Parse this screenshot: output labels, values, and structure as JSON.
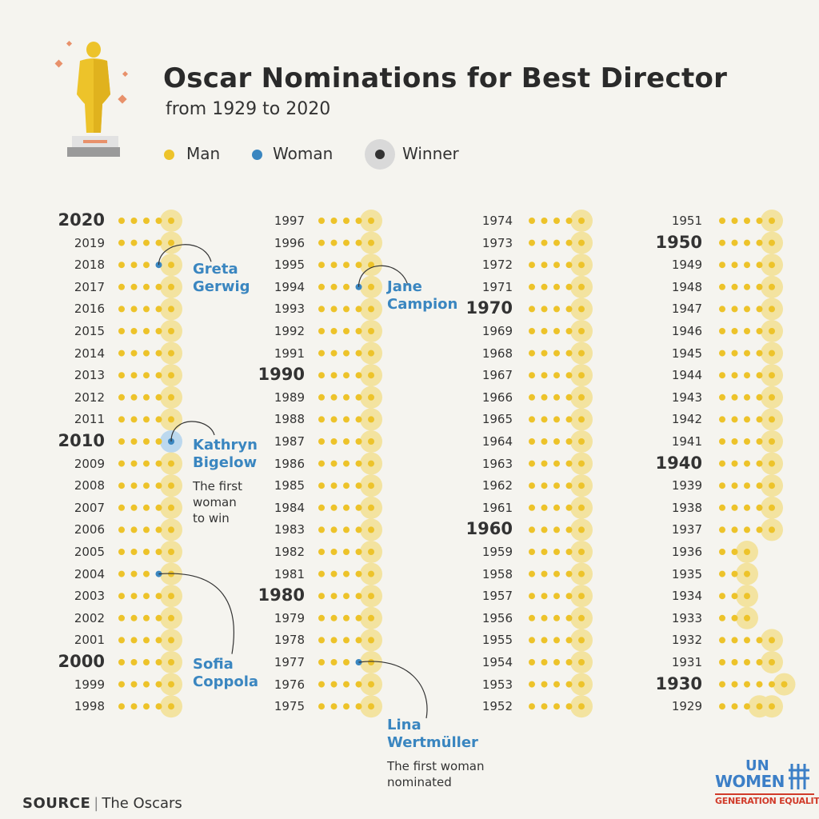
{
  "header": {
    "title": "Oscar Nominations for Best Director",
    "subtitle": "from 1929 to 2020"
  },
  "legend": [
    {
      "label": "Man",
      "color": "#edc32a"
    },
    {
      "label": "Woman",
      "color": "#3a86c0"
    },
    {
      "label": "Winner",
      "color": "#333333"
    }
  ],
  "source": {
    "label": "SOURCE",
    "text": "The Oscars"
  },
  "logo": {
    "line1": "UN",
    "line2": "WOMEN",
    "line3": "GENERATION EQUALITY"
  },
  "colors": {
    "man": "#edc32a",
    "woman": "#3a86c0",
    "winner_halo": "#f3e3a0",
    "woman_winner_halo": "#bcd8ee",
    "background": "#f5f4ef",
    "annotation": "#3a86c0"
  },
  "annotations": [
    {
      "id": "gerwig",
      "name_lines": [
        "Greta",
        "Gerwig"
      ],
      "note_lines": []
    },
    {
      "id": "bigelow",
      "name_lines": [
        "Kathryn",
        "Bigelow"
      ],
      "note_lines": [
        "The first",
        "woman",
        "to win"
      ]
    },
    {
      "id": "coppola",
      "name_lines": [
        "Sofia",
        "Coppola"
      ],
      "note_lines": []
    },
    {
      "id": "campion",
      "name_lines": [
        "Jane",
        "Campion"
      ],
      "note_lines": []
    },
    {
      "id": "wertmuller",
      "name_lines": [
        "Lina",
        "Wertmüller"
      ],
      "note_lines": [
        "The first woman",
        "nominated"
      ]
    }
  ],
  "chart_data": {
    "type": "dot matrix",
    "title": "Oscar Nominations for Best Director",
    "subtitle": "from 1929 to 2020",
    "columns": [
      {
        "years": [
          2020,
          2019,
          2018,
          2017,
          2016,
          2015,
          2014,
          2013,
          2012,
          2011,
          2010,
          2009,
          2008,
          2007,
          2006,
          2005,
          2004,
          2003,
          2002,
          2001,
          2000,
          1999,
          1998
        ]
      },
      {
        "years": [
          1997,
          1996,
          1995,
          1994,
          1993,
          1992,
          1991,
          1990,
          1989,
          1988,
          1987,
          1986,
          1985,
          1984,
          1983,
          1982,
          1981,
          1980,
          1979,
          1978,
          1977,
          1976,
          1975
        ]
      },
      {
        "years": [
          1974,
          1973,
          1972,
          1971,
          1970,
          1969,
          1968,
          1967,
          1966,
          1965,
          1964,
          1963,
          1962,
          1961,
          1960,
          1959,
          1958,
          1957,
          1956,
          1955,
          1954,
          1953,
          1952
        ]
      },
      {
        "years": [
          1951,
          1950,
          1949,
          1948,
          1947,
          1946,
          1945,
          1944,
          1943,
          1942,
          1941,
          1940,
          1939,
          1938,
          1937,
          1936,
          1935,
          1934,
          1933,
          1932,
          1931,
          1930,
          1929
        ]
      }
    ],
    "default_nominees": 5,
    "nominee_count_exceptions": {
      "1936": 3,
      "1935": 3,
      "1934": 3,
      "1933": 3,
      "1930": 6
    },
    "winner_position_exceptions": {
      "1929": [
        3,
        4
      ]
    },
    "women_nominees": [
      {
        "year": 2018,
        "name": "Greta Gerwig",
        "position": 3,
        "winner": false
      },
      {
        "year": 2010,
        "name": "Kathryn Bigelow",
        "position": 4,
        "winner": true
      },
      {
        "year": 2004,
        "name": "Sofia Coppola",
        "position": 3,
        "winner": false
      },
      {
        "year": 1994,
        "name": "Jane Campion",
        "position": 3,
        "winner": false
      },
      {
        "year": 1977,
        "name": "Lina Wertmüller",
        "position": 3,
        "winner": false
      }
    ],
    "emphasized_years": [
      2020,
      2010,
      2000,
      1990,
      1980,
      1970,
      1960,
      1950,
      1940,
      1930
    ]
  }
}
